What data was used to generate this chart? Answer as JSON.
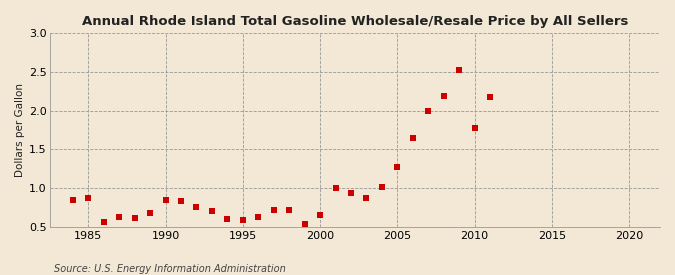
{
  "title": "Annual Rhode Island Total Gasoline Wholesale/Resale Price by All Sellers",
  "ylabel": "Dollars per Gallon",
  "source": "Source: U.S. Energy Information Administration",
  "background_color": "#f2e8d5",
  "plot_bg_color": "#f2e8d5",
  "marker_color": "#cc0000",
  "marker_size": 18,
  "xlim": [
    1982.5,
    2022
  ],
  "ylim": [
    0.5,
    3.0
  ],
  "yticks": [
    0.5,
    1.0,
    1.5,
    2.0,
    2.5,
    3.0
  ],
  "xticks": [
    1985,
    1990,
    1995,
    2000,
    2005,
    2010,
    2015,
    2020
  ],
  "data": [
    [
      1984,
      0.84
    ],
    [
      1985,
      0.87
    ],
    [
      1986,
      0.56
    ],
    [
      1987,
      0.63
    ],
    [
      1988,
      0.61
    ],
    [
      1989,
      0.68
    ],
    [
      1990,
      0.85
    ],
    [
      1991,
      0.83
    ],
    [
      1992,
      0.75
    ],
    [
      1993,
      0.7
    ],
    [
      1994,
      0.6
    ],
    [
      1995,
      0.58
    ],
    [
      1996,
      0.63
    ],
    [
      1997,
      0.72
    ],
    [
      1998,
      0.72
    ],
    [
      1999,
      0.53
    ],
    [
      2000,
      0.65
    ],
    [
      2001,
      1.0
    ],
    [
      2002,
      0.93
    ],
    [
      2003,
      0.87
    ],
    [
      2004,
      1.01
    ],
    [
      2005,
      1.27
    ],
    [
      2006,
      1.64
    ],
    [
      2007,
      2.0
    ],
    [
      2008,
      2.19
    ],
    [
      2009,
      2.52
    ],
    [
      2010,
      1.78
    ],
    [
      2011,
      2.17
    ]
  ]
}
